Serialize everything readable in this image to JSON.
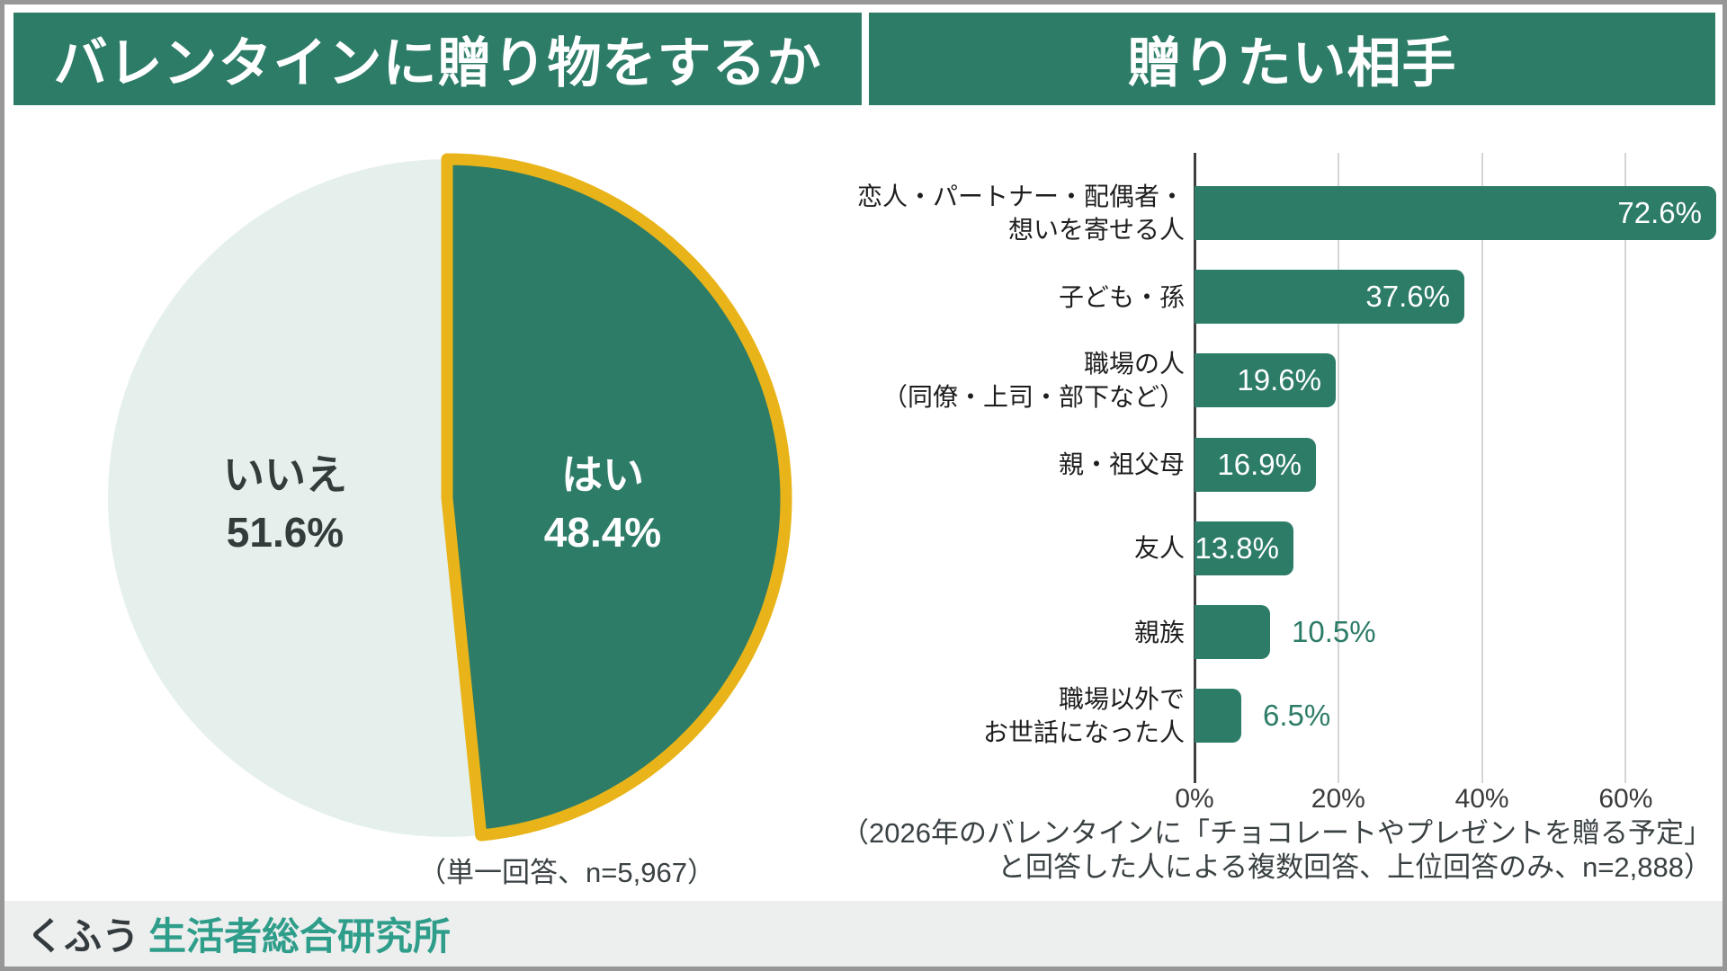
{
  "headers": {
    "left": "バレンタインに贈り物をするか",
    "right": "贈りたい相手"
  },
  "notes": {
    "pie": "（単一回答、n=5,967）",
    "bar_line1": "（2026年のバレンタインに「チョコレートやプレゼントを贈る予定」",
    "bar_line2": "と回答した人による複数回答、上位回答のみ、n=2,888）"
  },
  "footer": {
    "brand": "くふう",
    "institute": "生活者総合研究所"
  },
  "colors": {
    "accent_green": "#2D7C68",
    "pale_mint": "#E5F0EC",
    "gold_outline": "#E9B419",
    "logo_teal": "#2E9E8B",
    "dark_text": "#333B3B",
    "gridline_gray": "#D4D4D4",
    "axis_dark": "#3F3F3F"
  },
  "chart_data": [
    {
      "type": "pie",
      "title": "バレンタインに贈り物をするか",
      "note": "（単一回答、n=5,967）",
      "outline_color": "#E9B419",
      "slices": [
        {
          "label": "はい",
          "value": 48.4,
          "color": "#2D7C68",
          "text_color": "#FFFFFF"
        },
        {
          "label": "いいえ",
          "value": 51.6,
          "color": "#E5F0EC",
          "text_color": "#333B3B"
        }
      ]
    },
    {
      "type": "bar",
      "orientation": "horizontal",
      "title": "贈りたい相手",
      "note": "（2026年のバレンタインに「チョコレートやプレゼントを贈る予定」と回答した人による複数回答、上位回答のみ、n=2,888）",
      "categories": [
        "恋人・パートナー・配偶者・想いを寄せる人",
        "子ども・孫",
        "職場の人（同僚・上司・部下など）",
        "親・祖父母",
        "友人",
        "親族",
        "職場以外でお世話になった人"
      ],
      "categories_lines": [
        [
          "恋人・パートナー・配偶者・",
          "想いを寄せる人"
        ],
        [
          "子ども・孫"
        ],
        [
          "職場の人",
          "（同僚・上司・部下など）"
        ],
        [
          "親・祖父母"
        ],
        [
          "友人"
        ],
        [
          "親族"
        ],
        [
          "職場以外で",
          "お世話になった人"
        ]
      ],
      "values": [
        72.6,
        37.6,
        19.6,
        16.9,
        13.8,
        10.5,
        6.5
      ],
      "value_label_placement": [
        "inside",
        "inside",
        "inside",
        "inside",
        "inside",
        "outside",
        "outside"
      ],
      "x_ticks": [
        "0%",
        "20%",
        "40%",
        "60%"
      ],
      "x_tick_values": [
        0,
        20,
        40,
        60
      ],
      "xlim": [
        0,
        75
      ],
      "grid": true,
      "bar_color": "#2D7C68",
      "legend": "none"
    }
  ]
}
